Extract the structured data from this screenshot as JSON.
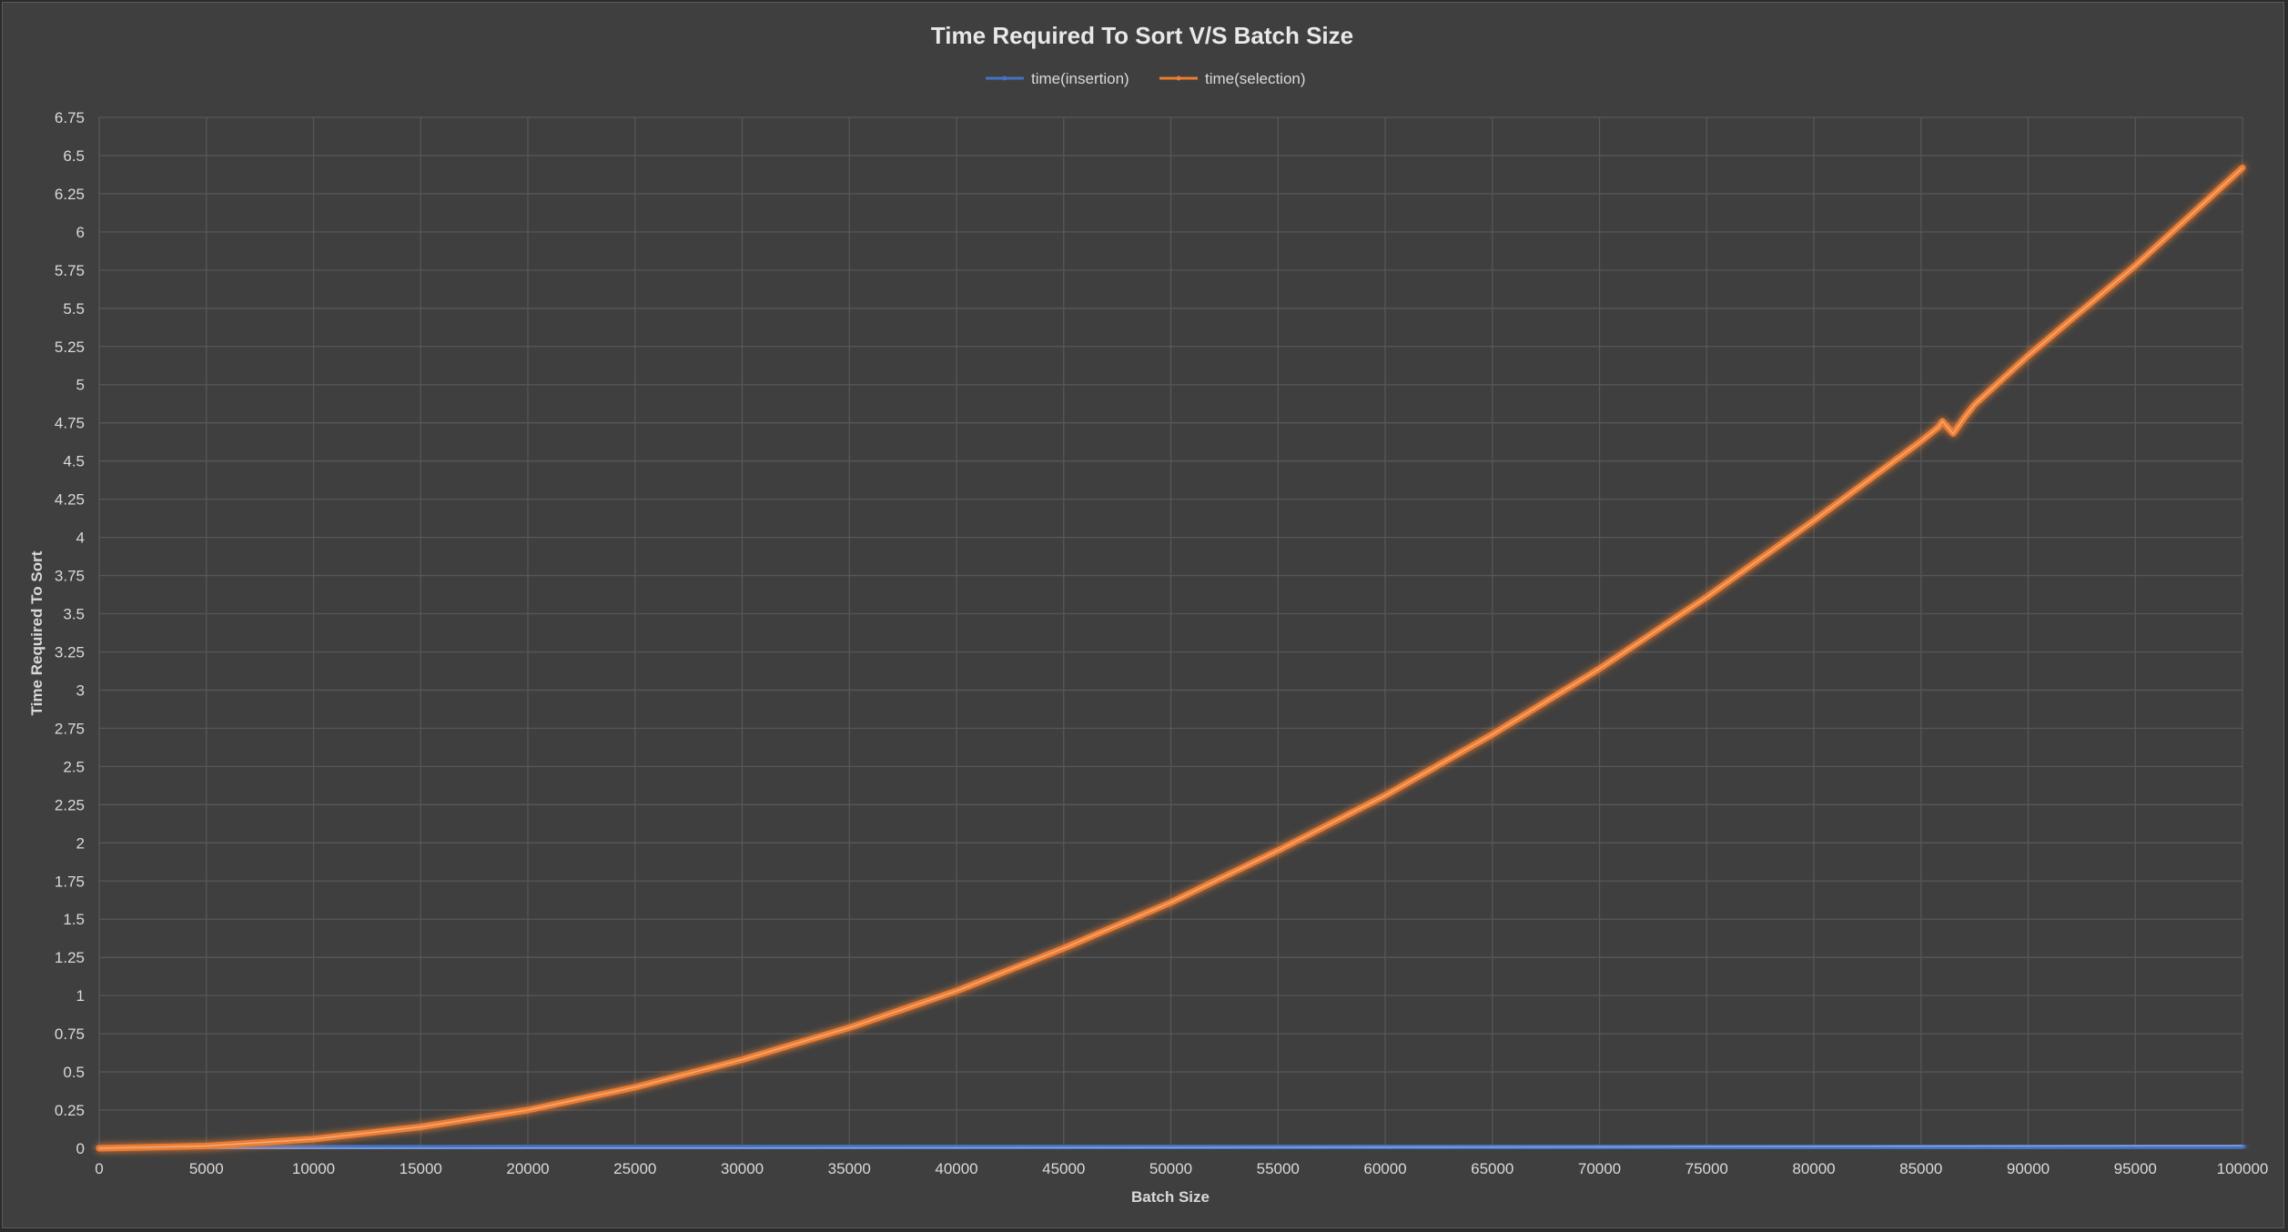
{
  "chart_data": {
    "type": "line",
    "title": "Time Required To Sort V/S Batch Size",
    "xlabel": "Batch Size",
    "ylabel": "Time Required To Sort",
    "xlim": [
      0,
      100000
    ],
    "ylim": [
      0,
      6.75
    ],
    "x_ticks": [
      "0",
      "5000",
      "10000",
      "15000",
      "20000",
      "25000",
      "30000",
      "35000",
      "40000",
      "45000",
      "50000",
      "55000",
      "60000",
      "65000",
      "70000",
      "75000",
      "80000",
      "85000",
      "90000",
      "95000",
      "100000"
    ],
    "y_ticks": [
      "0",
      "0.25",
      "0.5",
      "0.75",
      "1",
      "1.25",
      "1.5",
      "1.75",
      "2",
      "2.25",
      "2.5",
      "2.75",
      "3",
      "3.25",
      "3.5",
      "3.75",
      "4",
      "4.25",
      "4.5",
      "4.75",
      "5",
      "5.25",
      "5.5",
      "5.75",
      "6",
      "6.25",
      "6.5",
      "6.75"
    ],
    "grid": true,
    "legend_position": "top-center",
    "series": [
      {
        "name": "time(insertion)",
        "color": "#4472c4",
        "x": [
          0,
          10000,
          20000,
          30000,
          40000,
          50000,
          60000,
          70000,
          80000,
          90000,
          100000
        ],
        "values": [
          0,
          0,
          0.001,
          0.002,
          0.003,
          0.005,
          0.007,
          0.009,
          0.012,
          0.015,
          0.018
        ]
      },
      {
        "name": "time(selection)",
        "color": "#ed7d31",
        "x": [
          0,
          5000,
          10000,
          15000,
          20000,
          25000,
          30000,
          35000,
          40000,
          45000,
          50000,
          55000,
          60000,
          65000,
          70000,
          75000,
          80000,
          85000,
          85800,
          86000,
          86500,
          87000,
          87500,
          90000,
          95000,
          100000
        ],
        "values": [
          0,
          0.015,
          0.06,
          0.14,
          0.25,
          0.4,
          0.58,
          0.79,
          1.03,
          1.31,
          1.61,
          1.95,
          2.31,
          2.71,
          3.14,
          3.61,
          4.11,
          4.63,
          4.72,
          4.76,
          4.68,
          4.78,
          4.87,
          5.19,
          5.78,
          6.42
        ]
      }
    ]
  }
}
